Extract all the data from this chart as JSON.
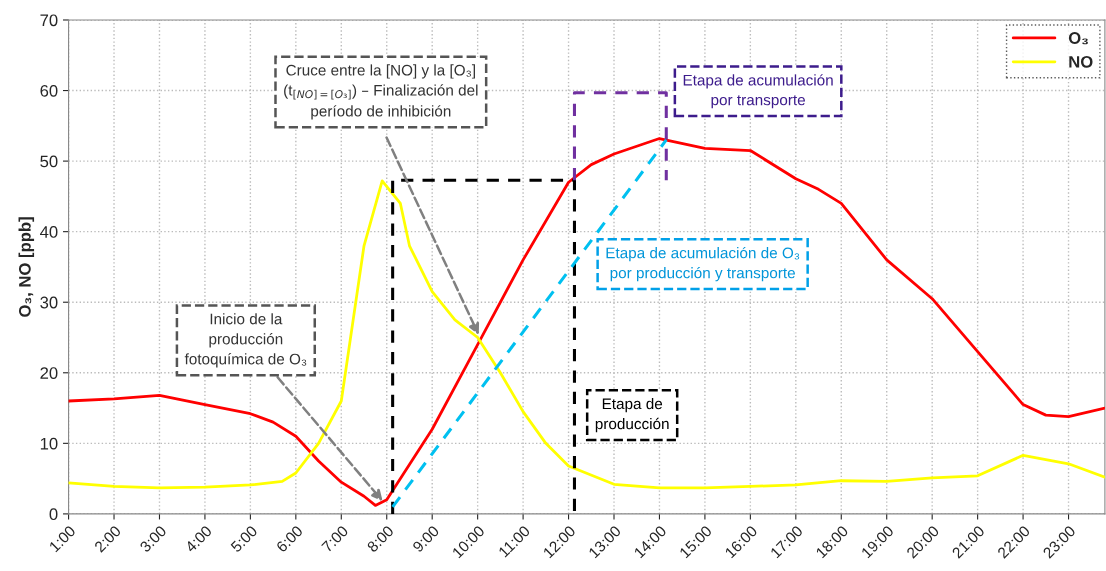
{
  "chart_data": {
    "type": "line",
    "ylabel": "O₃, NO [ppb]",
    "xlim": [
      1,
      23.8
    ],
    "ylim": [
      0,
      70
    ],
    "xticks": [
      {
        "value": 1,
        "label": "1:00"
      },
      {
        "value": 2,
        "label": "2:00"
      },
      {
        "value": 3,
        "label": "3:00"
      },
      {
        "value": 4,
        "label": "4:00"
      },
      {
        "value": 5,
        "label": "5:00"
      },
      {
        "value": 6,
        "label": "6:00"
      },
      {
        "value": 7,
        "label": "7:00"
      },
      {
        "value": 8,
        "label": "8:00"
      },
      {
        "value": 9,
        "label": "9:00"
      },
      {
        "value": 10,
        "label": "10:00"
      },
      {
        "value": 11,
        "label": "11:00"
      },
      {
        "value": 12,
        "label": "12:00"
      },
      {
        "value": 13,
        "label": "13:00"
      },
      {
        "value": 14,
        "label": "14:00"
      },
      {
        "value": 15,
        "label": "15:00"
      },
      {
        "value": 16,
        "label": "16:00"
      },
      {
        "value": 17,
        "label": "17:00"
      },
      {
        "value": 18,
        "label": "18:00"
      },
      {
        "value": 19,
        "label": "19:00"
      },
      {
        "value": 20,
        "label": "20:00"
      },
      {
        "value": 21,
        "label": "21:00"
      },
      {
        "value": 22,
        "label": "22:00"
      },
      {
        "value": 23,
        "label": "23:00"
      }
    ],
    "yticks": [
      0,
      10,
      20,
      30,
      40,
      50,
      60,
      70
    ],
    "grid": true,
    "legend": "top right",
    "marker": "none",
    "line_style": "solid",
    "series": [
      {
        "name": "O₃",
        "color": "#ff0000",
        "x": [
          1,
          2,
          3,
          4,
          5,
          5.5,
          6,
          6.5,
          7,
          7.5,
          7.75,
          8,
          8.5,
          9,
          10,
          11,
          12,
          12.5,
          13,
          14,
          15,
          16,
          17,
          17.5,
          18,
          19,
          20,
          21,
          22,
          22.5,
          23,
          23.8
        ],
        "values": [
          16,
          16.3,
          16.8,
          15.5,
          14.2,
          13,
          11,
          7.5,
          4.5,
          2.5,
          1.2,
          2,
          7,
          12,
          24,
          36,
          47,
          49.5,
          51,
          53.2,
          51.8,
          51.5,
          47.5,
          46,
          44,
          36,
          30.5,
          23,
          15.5,
          14,
          13.8,
          15
        ]
      },
      {
        "name": "NO",
        "color": "#ffff00",
        "x": [
          1,
          2,
          3,
          4,
          5,
          5.7,
          6,
          6.5,
          7,
          7.5,
          7.9,
          8.3,
          8.5,
          9,
          9.5,
          10,
          10.5,
          11,
          11.5,
          12,
          13,
          14,
          15,
          16,
          17,
          18,
          19,
          20,
          21,
          22,
          23,
          23.8
        ],
        "values": [
          4.4,
          3.9,
          3.7,
          3.8,
          4.1,
          4.6,
          5.8,
          10,
          16,
          38,
          47.2,
          44,
          38,
          31.5,
          27.5,
          25,
          20,
          14.5,
          10,
          6.8,
          4.2,
          3.7,
          3.7,
          3.9,
          4.1,
          4.7,
          4.6,
          5.1,
          5.4,
          8.3,
          7.1,
          5.2
        ]
      },
      {
        "type": "line",
        "color": "#000000",
        "line_style": "dashed",
        "x": [
          8.13,
          8.13,
          12.13,
          12.13
        ],
        "values": [
          0,
          47.3,
          47.3,
          0
        ]
      },
      {
        "type": "line",
        "color": "#7030a0",
        "line_style": "dashed",
        "x": [
          12.13,
          12.13,
          14.15,
          14.15
        ],
        "values": [
          47.3,
          59.7,
          59.7,
          47.3
        ]
      },
      {
        "type": "line",
        "color": "#00c0f0",
        "line_style": "dashed",
        "x": [
          8.13,
          14.15
        ],
        "values": [
          1,
          53
        ]
      }
    ],
    "annotations": [
      {
        "text": "Cruce entre la [NO] y la [O₃]\n(t$_{[NO]=[O₃]}$) – Finalización del\nperíodo de inhibición",
        "x": 10.05,
        "y": 25
      },
      {
        "text": "Inicio de la\nproducción\nfotoquímica de O₃",
        "x": 7.95,
        "y": 1.5
      },
      "Etapa de acumulación\npor transporte",
      "Etapa de acumulación de O₃\npor producción y transporte",
      "Etapa de\nproducción"
    ]
  }
}
